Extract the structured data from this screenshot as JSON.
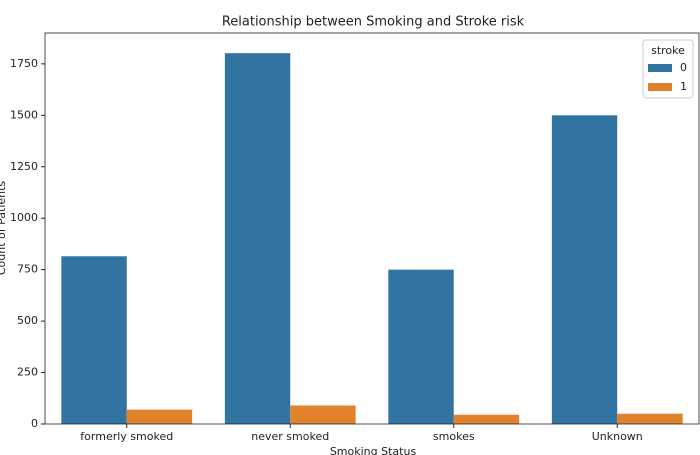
{
  "chart_data": {
    "type": "bar",
    "title": "Relationship between Smoking and Stroke risk",
    "xlabel": "Smoking Status",
    "ylabel": "Count of Patients",
    "categories": [
      "formerly smoked",
      "never smoked",
      "smokes",
      "Unknown"
    ],
    "series": [
      {
        "name": "0",
        "color": "#3274a1",
        "values": [
          815,
          1802,
          750,
          1500
        ]
      },
      {
        "name": "1",
        "color": "#e1812c",
        "values": [
          70,
          90,
          45,
          50
        ]
      }
    ],
    "legend_title": "stroke",
    "legend": "upper right",
    "ylim": [
      0,
      1900
    ],
    "yticks": [
      0,
      250,
      500,
      750,
      1000,
      1250,
      1500,
      1750
    ],
    "grid": false
  }
}
